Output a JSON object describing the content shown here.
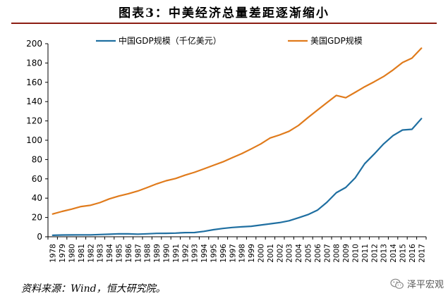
{
  "figure": {
    "title": "图表3：中美经济总量差距逐渐缩小",
    "source": "资料来源：Wind，恒大研究院。",
    "watermark": "泽平宏观",
    "watermark_icon": "wechat-icon"
  },
  "chart_data": {
    "type": "line",
    "title": "",
    "xlabel": "",
    "ylabel": "",
    "x": [
      "1978",
      "1979",
      "1980",
      "1981",
      "1982",
      "1983",
      "1984",
      "1985",
      "1986",
      "1987",
      "1988",
      "1989",
      "1990",
      "1991",
      "1992",
      "1993",
      "1994",
      "1995",
      "1996",
      "1997",
      "1998",
      "1999",
      "2000",
      "2001",
      "2002",
      "2003",
      "2004",
      "2005",
      "2006",
      "2007",
      "2008",
      "2009",
      "2010",
      "2011",
      "2012",
      "2013",
      "2014",
      "2015",
      "2016",
      "2017"
    ],
    "ylim": [
      0,
      200
    ],
    "yticks": [
      0,
      20,
      40,
      60,
      80,
      100,
      120,
      140,
      160,
      180,
      200
    ],
    "grid": false,
    "legend_position": "top",
    "series": [
      {
        "name": "中国GDP规模（千亿美元）",
        "color": "#1f6fa1",
        "values": [
          1.5,
          1.8,
          1.9,
          2.0,
          2.0,
          2.3,
          2.6,
          3.1,
          3.0,
          2.7,
          3.1,
          3.5,
          3.6,
          3.8,
          4.3,
          4.4,
          5.6,
          7.3,
          8.6,
          9.6,
          10.3,
          10.9,
          12.1,
          13.4,
          14.7,
          16.6,
          19.6,
          22.9,
          27.5,
          35.7,
          45.6,
          51.1,
          61.0,
          75.7,
          85.6,
          96.1,
          104.8,
          110.6,
          111.3,
          122.4
        ]
      },
      {
        "name": "美国GDP规模",
        "color": "#e07b1c",
        "values": [
          23.6,
          26.3,
          28.6,
          31.3,
          32.6,
          35.4,
          39.3,
          42.2,
          44.6,
          47.4,
          51.0,
          54.8,
          58.0,
          60.4,
          63.8,
          66.8,
          70.4,
          74.0,
          77.6,
          82.0,
          86.1,
          91.0,
          96.1,
          102.3,
          105.5,
          109.3,
          115.3,
          123.4,
          131.2,
          138.9,
          146.4,
          144.0,
          149.6,
          155.4,
          160.5,
          166.0,
          172.8,
          180.5,
          185.0,
          195.3
        ]
      }
    ]
  }
}
